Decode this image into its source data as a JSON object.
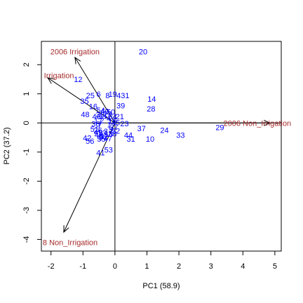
{
  "chart_data": {
    "type": "scatter",
    "subtype": "biplot",
    "xlabel": "PC1 (58.9)",
    "ylabel": "PC2 (37.2)",
    "xlim": [
      -2.3,
      5.2
    ],
    "ylim": [
      -4.4,
      2.8
    ],
    "x_ticks": [
      -2,
      -1,
      0,
      1,
      2,
      3,
      4,
      5
    ],
    "y_ticks": [
      -4,
      -3,
      -2,
      -1,
      0,
      1,
      2
    ],
    "reference_lines": {
      "x": 0,
      "y": 0
    },
    "colors": {
      "points": "#0000ff",
      "vectors": "#a52a2a",
      "axes": "#000000"
    },
    "points": [
      {
        "label": "20",
        "x": 0.88,
        "y": 2.45
      },
      {
        "label": "12",
        "x": -1.15,
        "y": 1.5
      },
      {
        "label": "25",
        "x": -0.77,
        "y": 0.95
      },
      {
        "label": "6",
        "x": -0.51,
        "y": 1.0
      },
      {
        "label": "8",
        "x": -0.23,
        "y": 0.95
      },
      {
        "label": "19",
        "x": -0.07,
        "y": 1.0
      },
      {
        "label": "431",
        "x": 0.25,
        "y": 0.95
      },
      {
        "label": "35",
        "x": -0.95,
        "y": 0.75
      },
      {
        "label": "16",
        "x": -0.68,
        "y": 0.57
      },
      {
        "label": "39",
        "x": 0.18,
        "y": 0.6
      },
      {
        "label": "14",
        "x": 1.15,
        "y": 0.83
      },
      {
        "label": "28",
        "x": 1.13,
        "y": 0.49
      },
      {
        "label": "48",
        "x": -0.93,
        "y": 0.3
      },
      {
        "label": "21",
        "x": 0.15,
        "y": 0.22
      },
      {
        "label": "23",
        "x": 0.3,
        "y": -0.02
      },
      {
        "label": "37",
        "x": 0.83,
        "y": -0.18
      },
      {
        "label": "24",
        "x": 1.55,
        "y": -0.25
      },
      {
        "label": "33",
        "x": 2.05,
        "y": -0.42
      },
      {
        "label": "29",
        "x": 3.28,
        "y": -0.15
      },
      {
        "label": "10",
        "x": 1.1,
        "y": -0.55
      },
      {
        "label": "42",
        "x": -0.87,
        "y": -0.51
      },
      {
        "label": "56",
        "x": -0.78,
        "y": -0.62
      },
      {
        "label": "49",
        "x": -0.52,
        "y": -0.32
      },
      {
        "label": "5",
        "x": -0.45,
        "y": -0.5
      },
      {
        "label": "57",
        "x": -0.35,
        "y": -0.45
      },
      {
        "label": "31",
        "x": 0.5,
        "y": -0.55
      },
      {
        "label": "44",
        "x": 0.42,
        "y": -0.42
      },
      {
        "label": "53",
        "x": -0.2,
        "y": -0.92
      },
      {
        "label": "41",
        "x": -0.45,
        "y": -1.02
      }
    ],
    "vectors": [
      {
        "label": "2006 Irrigation",
        "x": -1.25,
        "y": 2.25,
        "label_x": -1.25,
        "label_y": 2.45
      },
      {
        "label": "Irrigation",
        "x": -2.1,
        "y": 1.55,
        "label_x": -1.75,
        "label_y": 1.63
      },
      {
        "label": "2006 Non_Irrigation",
        "x": 4.85,
        "y": 0.0,
        "label_x": 4.45,
        "label_y": 0.0
      },
      {
        "label": "8 Non_Irrigation",
        "x": -1.6,
        "y": -3.75,
        "label_x": -1.4,
        "label_y": -4.1
      }
    ],
    "overplotted_cluster_labels": [
      "1",
      "2",
      "3",
      "4",
      "7",
      "9",
      "11",
      "13",
      "15",
      "17",
      "18",
      "22",
      "26",
      "27",
      "30",
      "32",
      "34",
      "36",
      "38",
      "40",
      "43",
      "45",
      "46",
      "47",
      "50",
      "51",
      "52",
      "54",
      "55"
    ]
  }
}
